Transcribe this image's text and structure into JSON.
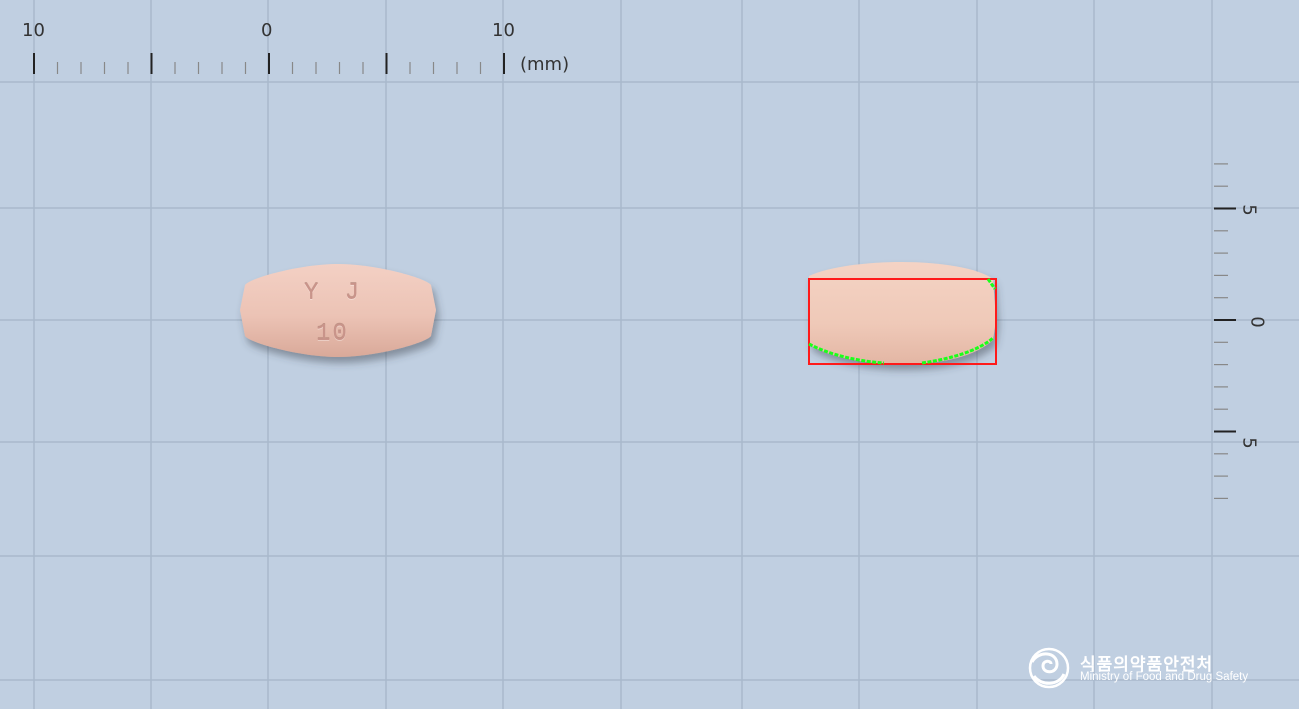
{
  "ruler_top": {
    "labels": [
      "10",
      "0",
      "10"
    ],
    "unit": "(mm)"
  },
  "ruler_right": {
    "labels": [
      "5",
      "0",
      "5"
    ]
  },
  "pill_front": {
    "imprint_line1": "Y J",
    "imprint_line2": "10",
    "color": "#ecc4b6"
  },
  "pill_side": {
    "color": "#efcab9"
  },
  "annotation": {
    "box_color": "#ff1a1a",
    "contour_color": "#1aff1a"
  },
  "logo": {
    "korean": "식품의약품안전처",
    "english": "Ministry of Food and Drug Safety",
    "icon": "mfds-swirl-icon"
  },
  "colors": {
    "background": "#c0cfe1",
    "grid": "#a9b9cc",
    "ruler": "#555555"
  }
}
